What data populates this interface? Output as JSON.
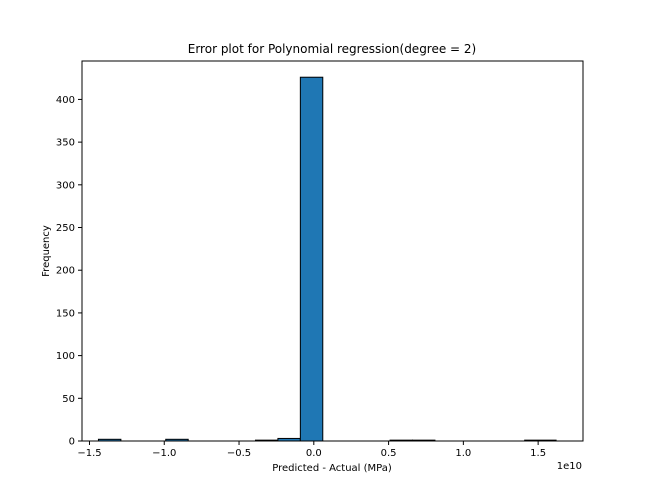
{
  "chart_data": {
    "type": "bar",
    "title": "Error plot for Polynomial regression(degree = 2)",
    "xlabel": "Predicted - Actual (MPa)",
    "ylabel": "Frequency",
    "x_offset_label": "1e10",
    "xlim": [
      -1.55,
      1.8
    ],
    "ylim": [
      0,
      445
    ],
    "x_ticks": [
      -1.5,
      -1.0,
      -0.5,
      0.0,
      0.5,
      1.0,
      1.5
    ],
    "x_tick_labels": [
      "−1.5",
      "−1.0",
      "−0.5",
      "0.0",
      "0.5",
      "1.0",
      "1.5"
    ],
    "y_ticks": [
      0,
      50,
      100,
      150,
      200,
      250,
      300,
      350,
      400
    ],
    "y_tick_labels": [
      "0",
      "50",
      "100",
      "150",
      "200",
      "250",
      "300",
      "350",
      "400"
    ],
    "bin_edges": [
      -1.44,
      -1.29,
      -1.14,
      -0.99,
      -0.84,
      -0.69,
      -0.54,
      -0.39,
      -0.24,
      -0.09,
      0.06,
      0.21,
      0.36,
      0.51,
      0.66,
      0.81,
      0.96,
      1.11,
      1.26,
      1.41,
      1.62
    ],
    "values": [
      2,
      0,
      0,
      2,
      0,
      0,
      0,
      1,
      3,
      426,
      0,
      0,
      0,
      1,
      1,
      0,
      0,
      0,
      0,
      1
    ],
    "bar_color": "#1f77b4",
    "edge_color": "#000000",
    "grid": false
  }
}
